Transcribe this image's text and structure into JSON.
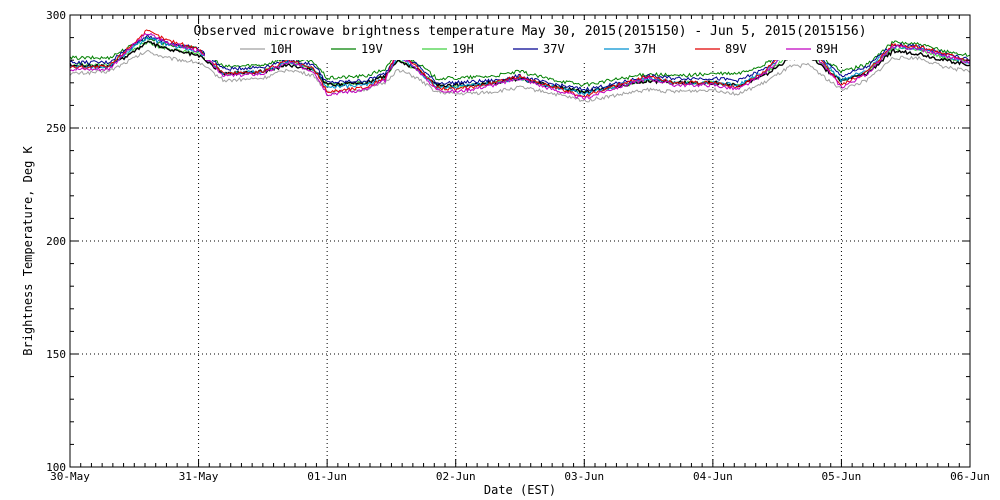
{
  "chart_data": {
    "type": "line",
    "title": "Observed microwave brightness temperature May 30, 2015(2015150) - Jun  5, 2015(2015156)",
    "xlabel": "Date (EST)",
    "ylabel": "Brightness Temperature, Deg K",
    "x_tick_labels": [
      "30-May",
      "31-May",
      "01-Jun",
      "02-Jun",
      "03-Jun",
      "04-Jun",
      "05-Jun",
      "06-Jun"
    ],
    "y_tick_labels": [
      "100",
      "150",
      "200",
      "250",
      "300"
    ],
    "ylim": [
      100,
      300
    ],
    "xlim_days": [
      0,
      7
    ],
    "grid": true,
    "legend_position": "top",
    "series": [
      {
        "name": "10H",
        "color": "#a0a0a0",
        "values": [
          [
            0,
            274
          ],
          [
            0.3,
            275
          ],
          [
            0.5,
            281
          ],
          [
            0.6,
            284
          ],
          [
            0.75,
            281
          ],
          [
            1,
            279
          ],
          [
            1.2,
            271
          ],
          [
            1.5,
            272
          ],
          [
            1.7,
            276
          ],
          [
            1.9,
            273
          ],
          [
            2,
            266
          ],
          [
            2.3,
            267
          ],
          [
            2.45,
            270
          ],
          [
            2.55,
            276
          ],
          [
            2.7,
            272
          ],
          [
            2.85,
            266
          ],
          [
            3,
            265
          ],
          [
            3.3,
            266
          ],
          [
            3.5,
            268
          ],
          [
            3.7,
            266
          ],
          [
            4,
            262
          ],
          [
            4.2,
            264
          ],
          [
            4.5,
            267
          ],
          [
            4.7,
            266
          ],
          [
            5,
            267
          ],
          [
            5.2,
            265
          ],
          [
            5.4,
            270
          ],
          [
            5.6,
            277
          ],
          [
            5.75,
            278
          ],
          [
            5.9,
            271
          ],
          [
            6,
            267
          ],
          [
            6.2,
            271
          ],
          [
            6.4,
            281
          ],
          [
            6.6,
            281
          ],
          [
            6.8,
            277
          ],
          [
            7,
            275
          ]
        ]
      },
      {
        "name": "19V",
        "color": "#008000",
        "values": [
          [
            0,
            281
          ],
          [
            0.3,
            281
          ],
          [
            0.5,
            287
          ],
          [
            0.6,
            290
          ],
          [
            0.75,
            287
          ],
          [
            1,
            285
          ],
          [
            1.2,
            277
          ],
          [
            1.5,
            278
          ],
          [
            1.7,
            281
          ],
          [
            1.9,
            279
          ],
          [
            2,
            272
          ],
          [
            2.3,
            273
          ],
          [
            2.45,
            276
          ],
          [
            2.55,
            283
          ],
          [
            2.7,
            279
          ],
          [
            2.85,
            272
          ],
          [
            3,
            272
          ],
          [
            3.3,
            273
          ],
          [
            3.5,
            275
          ],
          [
            3.7,
            272
          ],
          [
            4,
            269
          ],
          [
            4.2,
            271
          ],
          [
            4.5,
            274
          ],
          [
            4.7,
            273
          ],
          [
            5,
            274
          ],
          [
            5.2,
            274
          ],
          [
            5.4,
            278
          ],
          [
            5.6,
            285
          ],
          [
            5.75,
            286
          ],
          [
            5.9,
            279
          ],
          [
            6,
            275
          ],
          [
            6.2,
            278
          ],
          [
            6.4,
            288
          ],
          [
            6.6,
            287
          ],
          [
            6.8,
            284
          ],
          [
            7,
            282
          ]
        ]
      },
      {
        "name": "19H",
        "color": "#40d040",
        "values": [
          [
            0,
            278
          ],
          [
            0.3,
            278
          ],
          [
            0.5,
            285
          ],
          [
            0.6,
            288
          ],
          [
            0.75,
            285
          ],
          [
            1,
            283
          ],
          [
            1.2,
            274
          ],
          [
            1.5,
            275
          ],
          [
            1.7,
            279
          ],
          [
            1.9,
            276
          ],
          [
            2,
            269
          ],
          [
            2.3,
            270
          ],
          [
            2.45,
            273
          ],
          [
            2.55,
            280
          ],
          [
            2.7,
            276
          ],
          [
            2.85,
            269
          ],
          [
            3,
            268
          ],
          [
            3.3,
            270
          ],
          [
            3.5,
            272
          ],
          [
            3.7,
            269
          ],
          [
            4,
            266
          ],
          [
            4.2,
            268
          ],
          [
            4.5,
            271
          ],
          [
            4.7,
            270
          ],
          [
            5,
            270
          ],
          [
            5.2,
            269
          ],
          [
            5.4,
            274
          ],
          [
            5.6,
            282
          ],
          [
            5.75,
            283
          ],
          [
            5.9,
            276
          ],
          [
            6,
            271
          ],
          [
            6.2,
            275
          ],
          [
            6.4,
            285
          ],
          [
            6.6,
            285
          ],
          [
            6.8,
            281
          ],
          [
            7,
            279
          ]
        ]
      },
      {
        "name": "37V",
        "color": "#000090",
        "values": [
          [
            0,
            279
          ],
          [
            0.3,
            279
          ],
          [
            0.5,
            287
          ],
          [
            0.6,
            291
          ],
          [
            0.75,
            288
          ],
          [
            1,
            285
          ],
          [
            1.2,
            276
          ],
          [
            1.5,
            277
          ],
          [
            1.7,
            280
          ],
          [
            1.9,
            278
          ],
          [
            2,
            270
          ],
          [
            2.3,
            271
          ],
          [
            2.45,
            274
          ],
          [
            2.55,
            283
          ],
          [
            2.7,
            278
          ],
          [
            2.85,
            270
          ],
          [
            3,
            270
          ],
          [
            3.3,
            271
          ],
          [
            3.5,
            273
          ],
          [
            3.7,
            270
          ],
          [
            4,
            267
          ],
          [
            4.2,
            269
          ],
          [
            4.5,
            273
          ],
          [
            4.7,
            272
          ],
          [
            5,
            272
          ],
          [
            5.2,
            271
          ],
          [
            5.4,
            276
          ],
          [
            5.6,
            285
          ],
          [
            5.75,
            286
          ],
          [
            5.9,
            278
          ],
          [
            6,
            273
          ],
          [
            6.2,
            277
          ],
          [
            6.4,
            287
          ],
          [
            6.6,
            286
          ],
          [
            6.8,
            283
          ],
          [
            7,
            280
          ]
        ]
      },
      {
        "name": "37H",
        "color": "#0090d0",
        "values": [
          [
            0,
            277
          ],
          [
            0.3,
            277
          ],
          [
            0.5,
            286
          ],
          [
            0.6,
            290
          ],
          [
            0.75,
            287
          ],
          [
            1,
            284
          ],
          [
            1.2,
            274
          ],
          [
            1.5,
            275
          ],
          [
            1.7,
            279
          ],
          [
            1.9,
            276
          ],
          [
            2,
            268
          ],
          [
            2.3,
            269
          ],
          [
            2.45,
            272
          ],
          [
            2.55,
            282
          ],
          [
            2.7,
            276
          ],
          [
            2.85,
            268
          ],
          [
            3,
            268
          ],
          [
            3.3,
            270
          ],
          [
            3.5,
            272
          ],
          [
            3.7,
            269
          ],
          [
            4,
            265
          ],
          [
            4.2,
            268
          ],
          [
            4.5,
            272
          ],
          [
            4.7,
            270
          ],
          [
            5,
            270
          ],
          [
            5.2,
            269
          ],
          [
            5.4,
            275
          ],
          [
            5.6,
            284
          ],
          [
            5.75,
            285
          ],
          [
            5.9,
            277
          ],
          [
            6,
            271
          ],
          [
            6.2,
            276
          ],
          [
            6.4,
            286
          ],
          [
            6.6,
            285
          ],
          [
            6.8,
            282
          ],
          [
            7,
            279
          ]
        ]
      },
      {
        "name": "89V",
        "color": "#e00000",
        "values": [
          [
            0,
            277
          ],
          [
            0.3,
            277
          ],
          [
            0.5,
            288
          ],
          [
            0.6,
            293
          ],
          [
            0.75,
            289
          ],
          [
            1,
            285
          ],
          [
            1.2,
            274
          ],
          [
            1.5,
            275
          ],
          [
            1.7,
            280
          ],
          [
            1.9,
            276
          ],
          [
            2,
            266
          ],
          [
            2.3,
            268
          ],
          [
            2.45,
            272
          ],
          [
            2.55,
            284
          ],
          [
            2.7,
            277
          ],
          [
            2.85,
            268
          ],
          [
            3,
            267
          ],
          [
            3.3,
            270
          ],
          [
            3.5,
            273
          ],
          [
            3.7,
            269
          ],
          [
            4,
            264
          ],
          [
            4.2,
            268
          ],
          [
            4.5,
            273
          ],
          [
            4.7,
            270
          ],
          [
            5,
            270
          ],
          [
            5.2,
            268
          ],
          [
            5.4,
            275
          ],
          [
            5.6,
            286
          ],
          [
            5.75,
            286
          ],
          [
            5.9,
            276
          ],
          [
            6,
            269
          ],
          [
            6.2,
            275
          ],
          [
            6.4,
            287
          ],
          [
            6.6,
            286
          ],
          [
            6.8,
            283
          ],
          [
            7,
            280
          ]
        ]
      },
      {
        "name": "89H",
        "color": "#c000c0",
        "values": [
          [
            0,
            276
          ],
          [
            0.3,
            276
          ],
          [
            0.5,
            287
          ],
          [
            0.6,
            292
          ],
          [
            0.75,
            288
          ],
          [
            1,
            284
          ],
          [
            1.2,
            273
          ],
          [
            1.5,
            274
          ],
          [
            1.7,
            279
          ],
          [
            1.9,
            275
          ],
          [
            2,
            265
          ],
          [
            2.3,
            267
          ],
          [
            2.45,
            271
          ],
          [
            2.55,
            283
          ],
          [
            2.7,
            276
          ],
          [
            2.85,
            267
          ],
          [
            3,
            266
          ],
          [
            3.3,
            269
          ],
          [
            3.5,
            272
          ],
          [
            3.7,
            268
          ],
          [
            4,
            263
          ],
          [
            4.2,
            267
          ],
          [
            4.5,
            272
          ],
          [
            4.7,
            269
          ],
          [
            5,
            269
          ],
          [
            5.2,
            267
          ],
          [
            5.4,
            274
          ],
          [
            5.6,
            285
          ],
          [
            5.75,
            285
          ],
          [
            5.9,
            275
          ],
          [
            6,
            268
          ],
          [
            6.2,
            274
          ],
          [
            6.4,
            286
          ],
          [
            6.6,
            285
          ],
          [
            6.8,
            282
          ],
          [
            7,
            279
          ]
        ]
      },
      {
        "name": "",
        "color": "#000000",
        "values": [
          [
            0,
            278
          ],
          [
            0.3,
            277
          ],
          [
            0.5,
            284
          ],
          [
            0.6,
            288
          ],
          [
            0.75,
            285
          ],
          [
            1,
            282
          ],
          [
            1.2,
            274
          ],
          [
            1.5,
            275
          ],
          [
            1.7,
            278
          ],
          [
            1.9,
            276
          ],
          [
            2,
            269
          ],
          [
            2.3,
            270
          ],
          [
            2.45,
            273
          ],
          [
            2.55,
            280
          ],
          [
            2.7,
            276
          ],
          [
            2.85,
            269
          ],
          [
            3,
            269
          ],
          [
            3.3,
            270
          ],
          [
            3.5,
            272
          ],
          [
            3.7,
            269
          ],
          [
            4,
            266
          ],
          [
            4.2,
            268
          ],
          [
            4.5,
            271
          ],
          [
            4.7,
            270
          ],
          [
            5,
            270
          ],
          [
            5.2,
            269
          ],
          [
            5.4,
            273
          ],
          [
            5.6,
            281
          ],
          [
            5.75,
            282
          ],
          [
            5.9,
            275
          ],
          [
            6,
            271
          ],
          [
            6.2,
            274
          ],
          [
            6.4,
            284
          ],
          [
            6.6,
            283
          ],
          [
            6.8,
            280
          ],
          [
            7,
            278
          ]
        ]
      }
    ]
  }
}
